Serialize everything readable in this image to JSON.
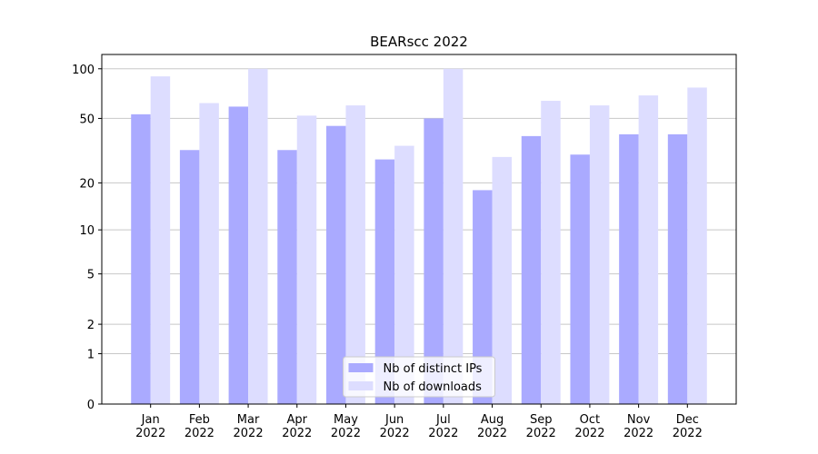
{
  "chart_data": {
    "type": "bar",
    "title": "BEARscc 2022",
    "categories": [
      "Jan\n2022",
      "Feb\n2022",
      "Mar\n2022",
      "Apr\n2022",
      "May\n2022",
      "Jun\n2022",
      "Jul\n2022",
      "Aug\n2022",
      "Sep\n2022",
      "Oct\n2022",
      "Nov\n2022",
      "Dec\n2022"
    ],
    "series": [
      {
        "name": "Nb of distinct IPs",
        "color": "#aaaaff",
        "values": [
          53,
          32,
          59,
          32,
          45,
          28,
          50,
          18,
          39,
          30,
          40,
          40
        ]
      },
      {
        "name": "Nb of downloads",
        "color": "#ddddff",
        "values": [
          90,
          62,
          100,
          52,
          60,
          34,
          100,
          29,
          64,
          60,
          69,
          77
        ]
      }
    ],
    "yscale": "log1p",
    "ylim": [
      0,
      122
    ],
    "yticks": [
      0,
      1,
      2,
      5,
      10,
      20,
      50,
      100
    ],
    "grid": true,
    "legend": "lower center"
  }
}
